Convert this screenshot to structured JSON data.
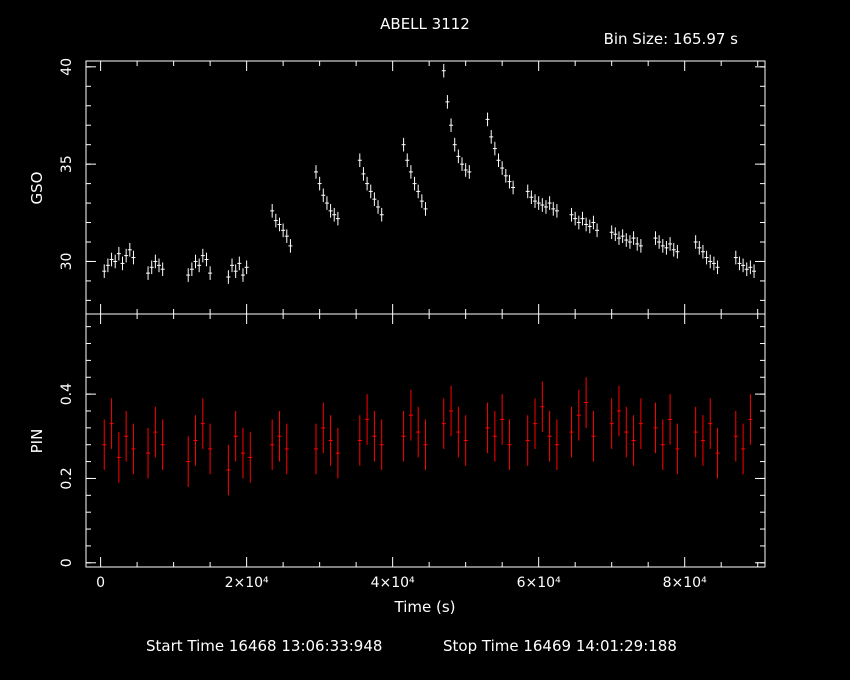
{
  "title": "ABELL 3112",
  "bin_size": "Bin Size: 165.97 s",
  "xlabel": "Time (s)",
  "start_time": "Start Time 16468 13:06:33:948",
  "stop_time": "Stop Time 16469 14:01:29:188",
  "colors": {
    "background": "#000000",
    "axes": "#ffffff",
    "gso": "#ffffff",
    "pin": "#ff0000"
  },
  "chart_data": [
    {
      "type": "scatter",
      "panel": "top",
      "ylabel": "GSO",
      "xlim": [
        -2000,
        91000
      ],
      "ylim": [
        27.3,
        40.3
      ],
      "x_ticks": [
        0,
        20000,
        40000,
        60000,
        80000
      ],
      "y_ticks": [
        30,
        35,
        40
      ],
      "y_tick_labels": [
        "30",
        "35",
        "40"
      ],
      "series": [
        {
          "values_note_free": true,
          "x": [
            500,
            1000,
            1500,
            2000,
            2500,
            3000,
            3500,
            4000,
            4500,
            6500,
            7000,
            7500,
            8000,
            8500,
            12000,
            12500,
            13000,
            13500,
            14000,
            14500,
            15000,
            17500,
            18000,
            18500,
            19000,
            19500,
            20000,
            23500,
            24000,
            24500,
            25000,
            25500,
            26000,
            29500,
            30000,
            30500,
            31000,
            31500,
            32000,
            32500,
            35500,
            36000,
            36500,
            37000,
            37500,
            38000,
            38500,
            41500,
            42000,
            42500,
            43000,
            43500,
            44000,
            44500,
            47000,
            47500,
            48000,
            48500,
            49000,
            49500,
            50000,
            50500,
            53000,
            53500,
            54000,
            54500,
            55000,
            55500,
            56000,
            56500,
            58500,
            59000,
            59500,
            60000,
            60500,
            61000,
            61500,
            62000,
            62500,
            64500,
            65000,
            65500,
            66000,
            66500,
            67000,
            67500,
            68000,
            70000,
            70500,
            71000,
            71500,
            72000,
            72500,
            73000,
            73500,
            74000,
            76000,
            76500,
            77000,
            77500,
            78000,
            78500,
            79000,
            81500,
            82000,
            82500,
            83000,
            83500,
            84000,
            84500,
            87000,
            87500,
            88000,
            88500,
            89000,
            89500
          ],
          "y": [
            29.5,
            29.8,
            30.1,
            30.0,
            30.4,
            29.9,
            30.3,
            30.6,
            30.2,
            29.4,
            29.7,
            30.0,
            29.8,
            29.6,
            29.3,
            29.6,
            30.0,
            29.8,
            30.3,
            30.1,
            29.4,
            29.2,
            29.8,
            29.5,
            29.9,
            29.3,
            29.7,
            32.6,
            32.1,
            31.9,
            31.6,
            31.3,
            30.8,
            34.6,
            34.0,
            33.4,
            33.0,
            32.6,
            32.4,
            32.2,
            35.2,
            34.5,
            34.0,
            33.6,
            33.2,
            32.8,
            32.4,
            36.0,
            35.2,
            34.6,
            34.0,
            33.6,
            33.1,
            32.7,
            39.8,
            38.2,
            37.0,
            36.0,
            35.4,
            35.0,
            34.7,
            34.6,
            37.3,
            36.4,
            35.8,
            35.2,
            34.8,
            34.4,
            34.1,
            33.8,
            33.6,
            33.3,
            33.1,
            33.0,
            32.9,
            32.8,
            33.0,
            32.7,
            32.6,
            32.4,
            32.2,
            32.0,
            32.2,
            31.9,
            31.8,
            32.0,
            31.6,
            31.5,
            31.4,
            31.2,
            31.3,
            31.1,
            31.0,
            31.2,
            30.9,
            30.8,
            31.2,
            31.0,
            30.8,
            30.7,
            30.9,
            30.6,
            30.5,
            31.0,
            30.7,
            30.5,
            30.2,
            30.0,
            29.9,
            29.7,
            30.2,
            29.9,
            29.8,
            29.6,
            29.7,
            29.5
          ]
        }
      ]
    },
    {
      "type": "scatter",
      "panel": "bottom",
      "ylabel": "PIN",
      "xlabel": "Time (s)",
      "xlim": [
        -2000,
        91000
      ],
      "ylim": [
        -0.01,
        0.59
      ],
      "x_ticks": [
        0,
        20000,
        40000,
        60000,
        80000
      ],
      "x_tick_labels": [
        "0",
        "2×10⁴",
        "4×10⁴",
        "6×10⁴",
        "8×10⁴"
      ],
      "y_ticks": [
        0,
        0.2,
        0.4
      ],
      "y_tick_labels": [
        "0",
        "0.2",
        "0.4"
      ],
      "series": [
        {
          "x": [
            500,
            1500,
            2500,
            3500,
            4500,
            6500,
            7500,
            8500,
            12000,
            13000,
            14000,
            15000,
            17500,
            18500,
            19500,
            20500,
            23500,
            24500,
            25500,
            29500,
            30500,
            31500,
            32500,
            35500,
            36500,
            37500,
            38500,
            41500,
            42500,
            43500,
            44500,
            47000,
            48000,
            49000,
            50000,
            53000,
            54000,
            55000,
            56000,
            58500,
            59500,
            60500,
            61500,
            62500,
            64500,
            65500,
            66500,
            67500,
            70000,
            71000,
            72000,
            73000,
            74000,
            76000,
            77000,
            78000,
            79000,
            81500,
            82500,
            83500,
            84500,
            87000,
            88000,
            89000
          ],
          "y": [
            0.28,
            0.33,
            0.25,
            0.3,
            0.27,
            0.26,
            0.31,
            0.28,
            0.24,
            0.29,
            0.33,
            0.27,
            0.22,
            0.3,
            0.26,
            0.25,
            0.28,
            0.3,
            0.27,
            0.27,
            0.32,
            0.29,
            0.26,
            0.29,
            0.34,
            0.3,
            0.28,
            0.3,
            0.35,
            0.31,
            0.28,
            0.33,
            0.36,
            0.31,
            0.29,
            0.32,
            0.3,
            0.34,
            0.28,
            0.29,
            0.33,
            0.37,
            0.3,
            0.28,
            0.31,
            0.35,
            0.38,
            0.3,
            0.33,
            0.36,
            0.31,
            0.29,
            0.33,
            0.32,
            0.28,
            0.34,
            0.27,
            0.31,
            0.29,
            0.33,
            0.26,
            0.3,
            0.27,
            0.34
          ]
        }
      ]
    }
  ]
}
